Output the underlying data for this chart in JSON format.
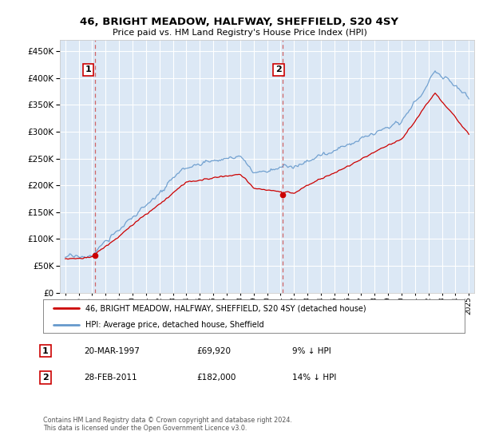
{
  "title": "46, BRIGHT MEADOW, HALFWAY, SHEFFIELD, S20 4SY",
  "subtitle": "Price paid vs. HM Land Registry's House Price Index (HPI)",
  "legend_line1": "46, BRIGHT MEADOW, HALFWAY, SHEFFIELD, S20 4SY (detached house)",
  "legend_line2": "HPI: Average price, detached house, Sheffield",
  "annotation1_label": "1",
  "annotation1_date": "20-MAR-1997",
  "annotation1_price": "£69,920",
  "annotation1_hpi": "9% ↓ HPI",
  "annotation2_label": "2",
  "annotation2_date": "28-FEB-2011",
  "annotation2_price": "£182,000",
  "annotation2_hpi": "14% ↓ HPI",
  "footer": "Contains HM Land Registry data © Crown copyright and database right 2024.\nThis data is licensed under the Open Government Licence v3.0.",
  "hpi_color": "#6699cc",
  "price_color": "#cc0000",
  "vline_color": "#cc4444",
  "annotation_box_color": "#cc0000",
  "background_color": "#dce8f5",
  "grid_color": "#ffffff",
  "ylim": [
    0,
    470000
  ],
  "yticks": [
    0,
    50000,
    100000,
    150000,
    200000,
    250000,
    300000,
    350000,
    400000,
    450000
  ],
  "sale1_year": 1997.21,
  "sale1_price": 69920,
  "sale2_year": 2011.16,
  "sale2_price": 182000
}
